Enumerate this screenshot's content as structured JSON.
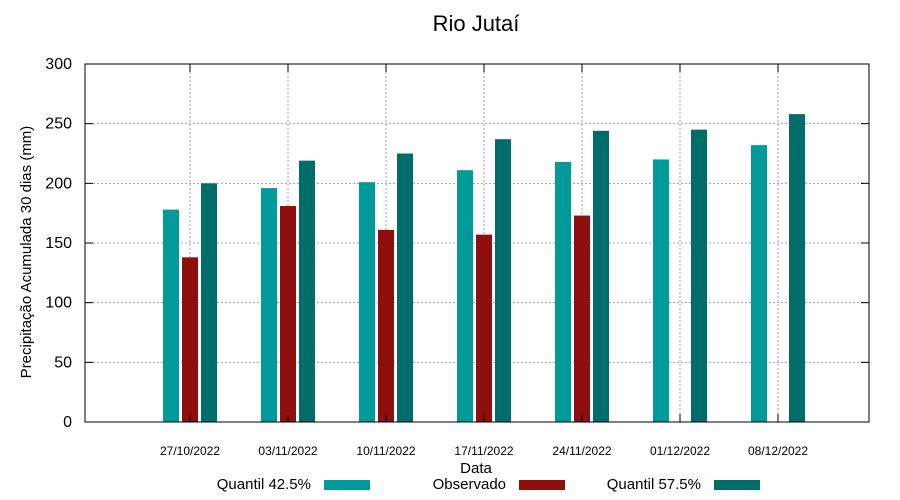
{
  "chart_data": {
    "type": "bar",
    "title": "Rio Jutaí",
    "xlabel": "Data",
    "ylabel": "Precipitação Acumulada 30 dias (mm)",
    "ylim": [
      0,
      300
    ],
    "yticks": [
      0,
      50,
      100,
      150,
      200,
      250,
      300
    ],
    "grid": true,
    "legend_position": "bottom",
    "categories": [
      "27/10/2022",
      "03/11/2022",
      "10/11/2022",
      "17/11/2022",
      "24/11/2022",
      "01/12/2022",
      "08/12/2022"
    ],
    "series": [
      {
        "name": "Quantil 42.5%",
        "color": "#009a9a",
        "values": [
          178,
          196,
          201,
          211,
          218,
          220,
          232
        ]
      },
      {
        "name": "Observado",
        "color": "#8f0e0e",
        "values": [
          138,
          181,
          161,
          157,
          173,
          null,
          null
        ]
      },
      {
        "name": "Quantil 57.5%",
        "color": "#006d6a",
        "values": [
          200,
          219,
          225,
          237,
          244,
          245,
          258
        ]
      }
    ]
  }
}
